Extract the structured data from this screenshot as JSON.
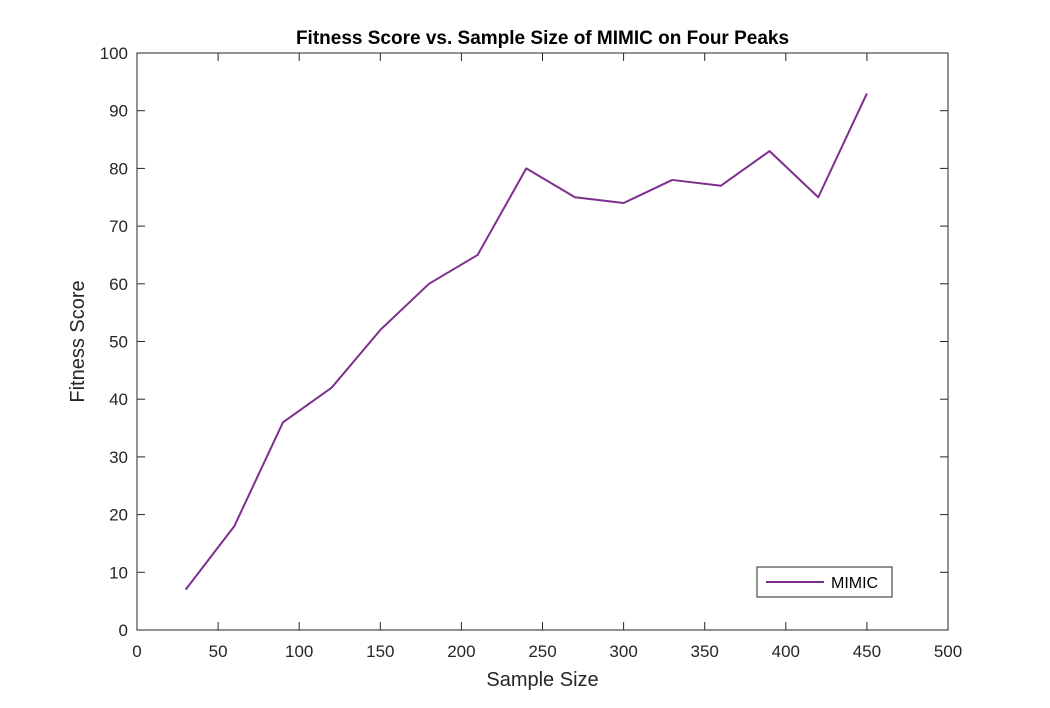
{
  "chart_data": {
    "type": "line",
    "title": "Fitness Score vs. Sample Size of MIMIC on Four Peaks",
    "xlabel": "Sample Size",
    "ylabel": "Fitness Score",
    "xlim": [
      0,
      500
    ],
    "ylim": [
      0,
      100
    ],
    "xticks": [
      0,
      50,
      100,
      150,
      200,
      250,
      300,
      350,
      400,
      450,
      500
    ],
    "yticks": [
      0,
      10,
      20,
      30,
      40,
      50,
      60,
      70,
      80,
      90,
      100
    ],
    "grid": false,
    "legend_position": "bottom-right",
    "series": [
      {
        "name": "MIMIC",
        "color": "#7E2F8E",
        "x": [
          30,
          60,
          90,
          120,
          150,
          180,
          210,
          240,
          270,
          300,
          330,
          360,
          390,
          420,
          450
        ],
        "y": [
          7,
          18,
          36,
          42,
          52,
          60,
          65,
          80,
          75,
          74,
          78,
          77,
          83,
          75,
          93
        ]
      }
    ]
  }
}
